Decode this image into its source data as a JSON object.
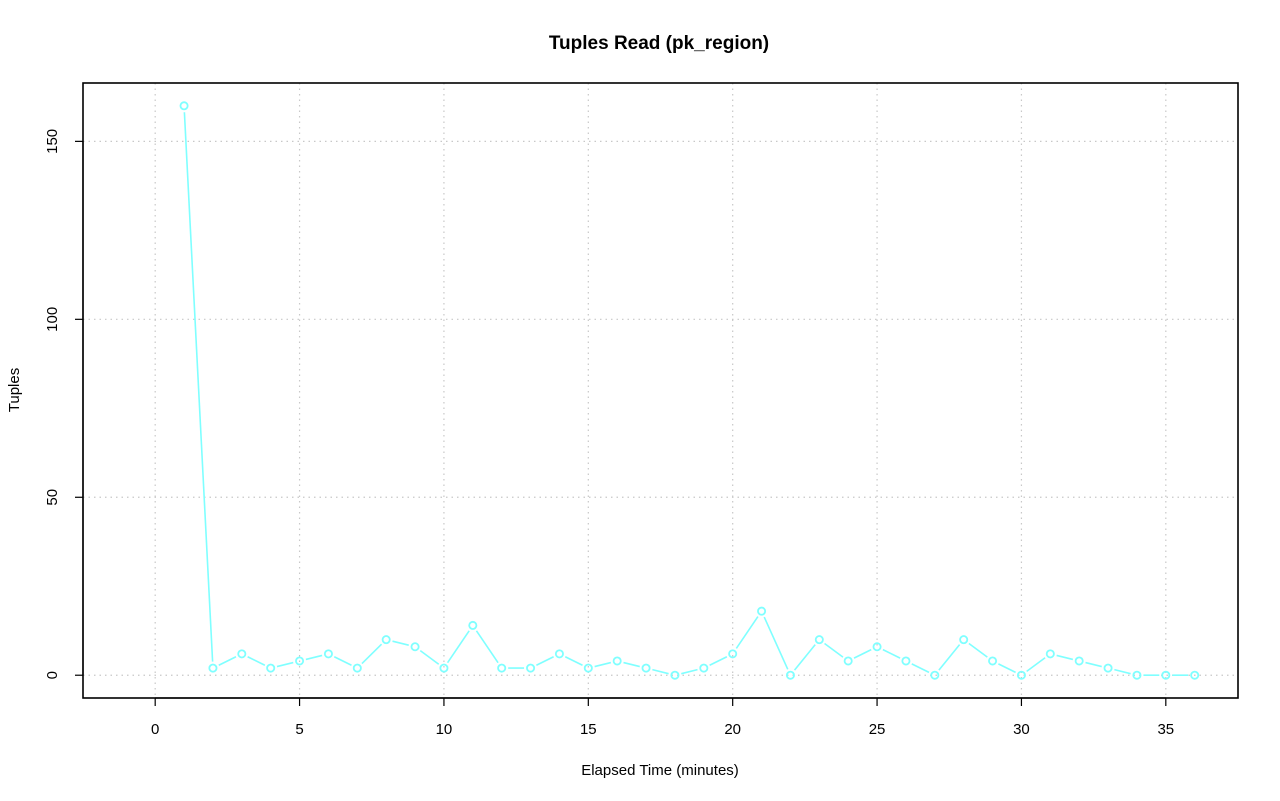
{
  "chart_data": {
    "type": "line",
    "title": "Tuples Read (pk_region)",
    "xlabel": "Elapsed Time (minutes)",
    "ylabel": "Tuples",
    "xlim": [
      -2.5,
      37.5
    ],
    "ylim": [
      -6.4,
      166.4
    ],
    "x_ticks": [
      0,
      5,
      10,
      15,
      20,
      25,
      30,
      35
    ],
    "y_ticks": [
      0,
      50,
      100,
      150
    ],
    "grid": true,
    "series_color": "#7fffff",
    "series": [
      {
        "x": [
          1,
          2,
          3,
          4,
          5,
          6,
          7,
          8,
          9,
          10,
          11,
          12,
          13,
          14,
          15,
          16,
          17,
          18,
          19,
          20,
          21,
          22,
          23,
          24,
          25,
          26,
          27,
          28,
          29,
          30,
          31,
          32,
          33,
          34,
          35,
          36
        ],
        "values": [
          160,
          2,
          6,
          2,
          4,
          6,
          2,
          10,
          8,
          2,
          14,
          2,
          2,
          6,
          2,
          4,
          2,
          0,
          2,
          6,
          18,
          0,
          10,
          4,
          8,
          4,
          0,
          10,
          4,
          0,
          6,
          4,
          2,
          0,
          0,
          0
        ]
      }
    ]
  }
}
